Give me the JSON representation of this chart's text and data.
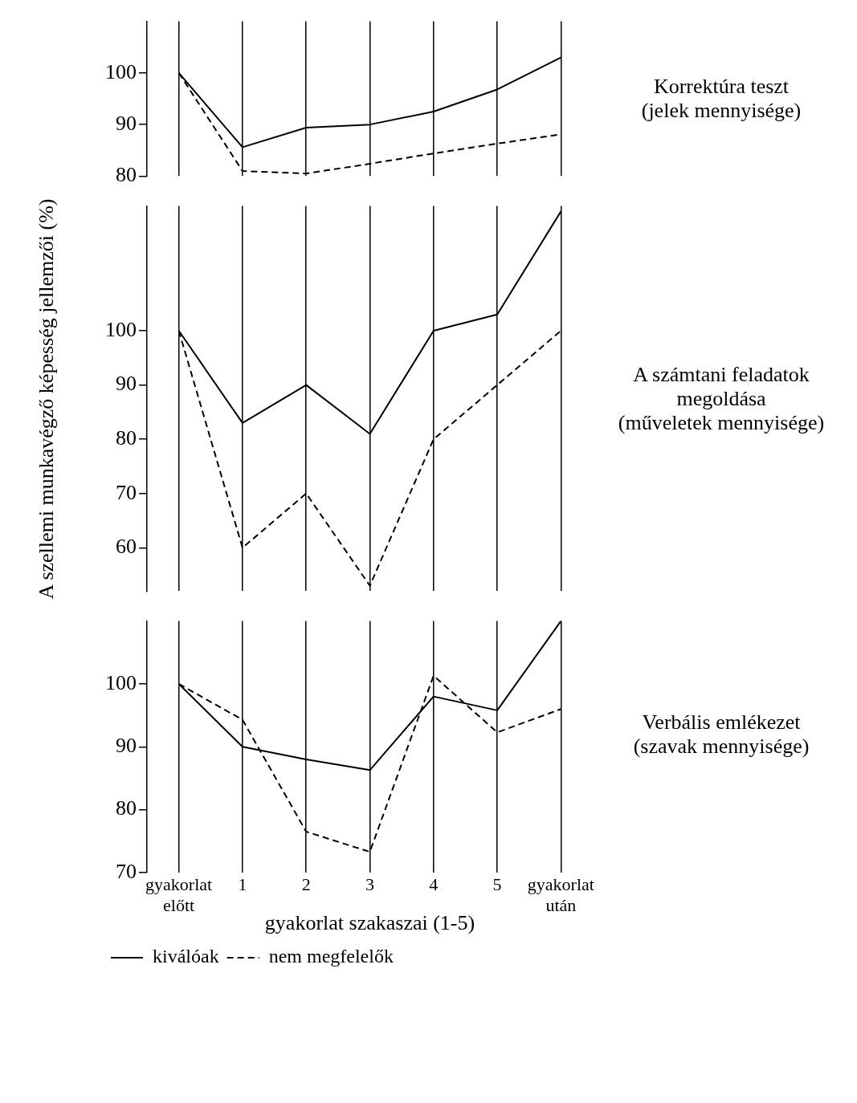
{
  "chart_data": [
    {
      "type": "line",
      "categories": [
        null,
        null,
        null,
        null,
        null,
        null,
        null
      ],
      "annotations": [
        "Korrektúra teszt",
        "(jelek mennyisége)"
      ],
      "ylim": [
        80,
        110
      ],
      "yticks": [
        80,
        90,
        100
      ],
      "grid": "x",
      "tick_labels": "y",
      "legend": false,
      "series": [
        {
          "color": "#000000",
          "line_style": "solid",
          "values": [
            100,
            85.6,
            89.4,
            90,
            92.5,
            96.8,
            103
          ]
        },
        {
          "color": "#000000",
          "line_style": "dashed",
          "values": [
            100,
            81,
            80.5,
            82.4,
            84.4,
            86.3,
            88.1
          ]
        }
      ]
    },
    {
      "type": "line",
      "categories": [
        null,
        null,
        null,
        null,
        null,
        null,
        null
      ],
      "ylabel": "A szellemi munkavégző képesség jellemzői (%)",
      "annotations": [
        "A számtani feladatok",
        "megoldása",
        "(műveletek mennyisége)"
      ],
      "ylim": [
        52,
        123
      ],
      "yticks": [
        60,
        70,
        80,
        90,
        100
      ],
      "grid": "x",
      "tick_labels": "y",
      "legend": false,
      "series": [
        {
          "color": "#000000",
          "line_style": "solid",
          "values": [
            100,
            83,
            90,
            81,
            100,
            103,
            122
          ]
        },
        {
          "color": "#000000",
          "line_style": "dashed",
          "values": [
            100,
            60,
            70,
            53,
            80,
            90,
            100
          ]
        }
      ]
    },
    {
      "type": "line",
      "categories": [
        "gyakorlat előtt",
        "1",
        "2",
        "3",
        "4",
        "5",
        "gyakorlat után"
      ],
      "xlabel": "gyakorlat szakaszai (1-5)",
      "annotations": [
        "Verbális emlékezet",
        "(szavak mennyisége)"
      ],
      "ylim": [
        70,
        110
      ],
      "yticks": [
        70,
        80,
        90,
        100
      ],
      "grid": "x",
      "legend": "bottom left",
      "series": [
        {
          "name": "kiválóak",
          "color": "#000000",
          "line_style": "solid",
          "values": [
            100,
            90,
            88,
            86.3,
            98,
            95.8,
            110
          ]
        },
        {
          "name": "nem megfelelők",
          "color": "#000000",
          "line_style": "dashed",
          "values": [
            100,
            94.3,
            76.5,
            73.3,
            101.3,
            92.3,
            96
          ]
        }
      ]
    }
  ]
}
